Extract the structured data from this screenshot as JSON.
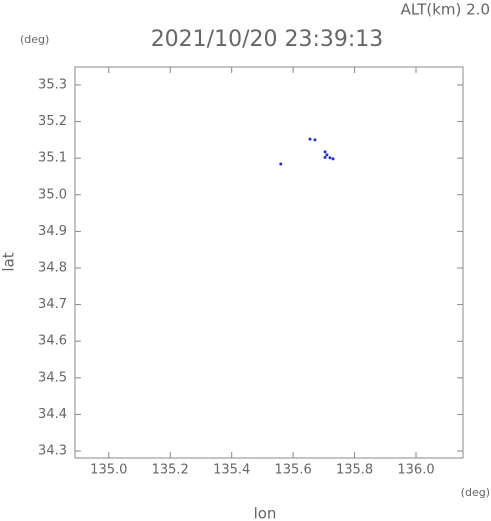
{
  "chart_data": {
    "type": "scatter",
    "title": "2021/10/20 23:39:13",
    "altitude_label": "ALT(km) 2.0",
    "y_unit": "(deg)",
    "x_unit": "(deg)",
    "xlabel": "lon",
    "ylabel": "lat",
    "xlim": [
      134.89,
      136.153
    ],
    "ylim": [
      34.281,
      35.349
    ],
    "xticks": [
      {
        "value": 135.0,
        "label": "135.0"
      },
      {
        "value": 135.2,
        "label": "135.2"
      },
      {
        "value": 135.4,
        "label": "135.4"
      },
      {
        "value": 135.6,
        "label": "135.6"
      },
      {
        "value": 135.8,
        "label": "135.8"
      },
      {
        "value": 136.0,
        "label": "136.0"
      }
    ],
    "yticks": [
      {
        "value": 34.3,
        "label": "34.3"
      },
      {
        "value": 34.4,
        "label": "34.4"
      },
      {
        "value": 34.5,
        "label": "34.5"
      },
      {
        "value": 34.6,
        "label": "34.6"
      },
      {
        "value": 34.7,
        "label": "34.7"
      },
      {
        "value": 34.8,
        "label": "34.8"
      },
      {
        "value": 34.9,
        "label": "34.9"
      },
      {
        "value": 35.0,
        "label": "35.0"
      },
      {
        "value": 35.1,
        "label": "35.1"
      },
      {
        "value": 35.2,
        "label": "35.2"
      },
      {
        "value": 35.3,
        "label": "35.3"
      }
    ],
    "color": "#2233cc",
    "x": [
      135.56,
      135.655,
      135.671,
      135.704,
      135.71,
      135.704,
      135.72,
      135.73
    ],
    "values": [
      35.084,
      35.152,
      35.15,
      35.117,
      35.109,
      35.102,
      35.101,
      35.098
    ]
  }
}
